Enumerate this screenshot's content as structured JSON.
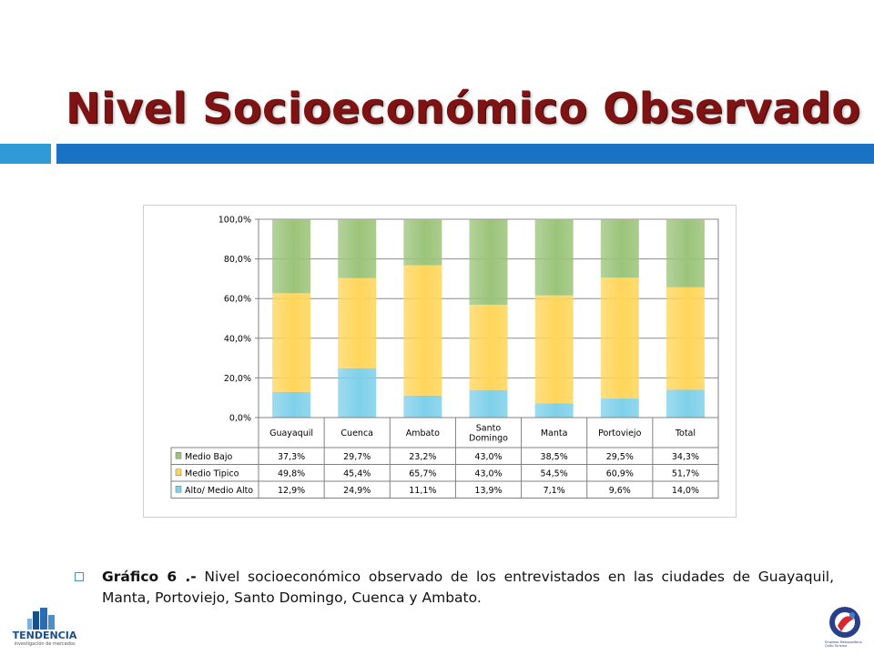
{
  "slide": {
    "title": "Nivel Socioeconómico Observado",
    "caption_bold": "Gráfico 6 .-",
    "caption_text": " Nivel socioeconómico observado de los entrevistados en las ciudades de Guayaquil, Manta, Portoviejo, Santo Domingo, Cuenca y Ambato.",
    "logo_left_text": "TENDENCIA",
    "logo_left_subtext": "investigación de mercados",
    "logo_right_text": "Empresa Metropolitana Quito Turismo"
  },
  "colors": {
    "title": "#7f1212",
    "accent_light": "#2f9bd6",
    "accent_dark": "#1972c4",
    "medio_bajo": "#9bc47a",
    "medio_tipico": "#ffd55a",
    "alto_medio_alto": "#7fd0ea"
  },
  "chart_data": {
    "type": "bar",
    "stacked": true,
    "categories": [
      "Guayaquil",
      "Cuenca",
      "Ambato",
      "Santo Domingo",
      "Manta",
      "Portoviejo",
      "Total"
    ],
    "category_lines": [
      [
        "Guayaquil"
      ],
      [
        "Cuenca"
      ],
      [
        "Ambato"
      ],
      [
        "Santo",
        "Domingo"
      ],
      [
        "Manta"
      ],
      [
        "Portoviejo"
      ],
      [
        "Total"
      ]
    ],
    "series": [
      {
        "name": "Medio Bajo",
        "values": [
          37.3,
          29.7,
          23.2,
          43.0,
          38.5,
          29.5,
          34.3
        ],
        "labels": [
          "37,3%",
          "29,7%",
          "23,2%",
          "43,0%",
          "38,5%",
          "29,5%",
          "34,3%"
        ]
      },
      {
        "name": "Medio Tipico",
        "values": [
          49.8,
          45.4,
          65.7,
          43.0,
          54.5,
          60.9,
          51.7
        ],
        "labels": [
          "49,8%",
          "45,4%",
          "65,7%",
          "43,0%",
          "54,5%",
          "60,9%",
          "51,7%"
        ]
      },
      {
        "name": "Alto/ Medio Alto",
        "values": [
          12.9,
          24.9,
          11.1,
          13.9,
          7.1,
          9.6,
          14.0
        ],
        "labels": [
          "12,9%",
          "24,9%",
          "11,1%",
          "13,9%",
          "7,1%",
          "9,6%",
          "14,0%"
        ]
      }
    ],
    "stack_order_bottom_to_top": [
      "Alto/ Medio Alto",
      "Medio Tipico",
      "Medio Bajo"
    ],
    "yticks": [
      "0,0%",
      "20,0%",
      "40,0%",
      "60,0%",
      "80,0%",
      "100,0%"
    ],
    "ylim": [
      0,
      100
    ],
    "grid": true,
    "legend": "data-table"
  }
}
